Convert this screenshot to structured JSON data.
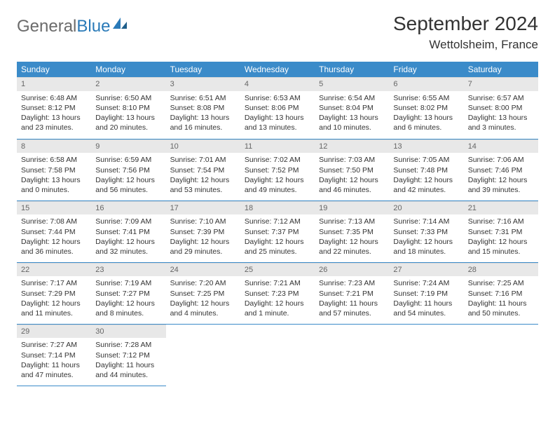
{
  "logo": {
    "text1": "General",
    "text2": "Blue"
  },
  "title": "September 2024",
  "location": "Wettolsheim, France",
  "colors": {
    "header_bg": "#3b8bc9",
    "daynum_bg": "#e8e8e8",
    "rule": "#3b8bc9",
    "logo_gray": "#6b6b6b",
    "logo_blue": "#2a7ab8"
  },
  "dow": [
    "Sunday",
    "Monday",
    "Tuesday",
    "Wednesday",
    "Thursday",
    "Friday",
    "Saturday"
  ],
  "weeks": [
    [
      {
        "n": "1",
        "sr": "Sunrise: 6:48 AM",
        "ss": "Sunset: 8:12 PM",
        "d1": "Daylight: 13 hours",
        "d2": "and 23 minutes."
      },
      {
        "n": "2",
        "sr": "Sunrise: 6:50 AM",
        "ss": "Sunset: 8:10 PM",
        "d1": "Daylight: 13 hours",
        "d2": "and 20 minutes."
      },
      {
        "n": "3",
        "sr": "Sunrise: 6:51 AM",
        "ss": "Sunset: 8:08 PM",
        "d1": "Daylight: 13 hours",
        "d2": "and 16 minutes."
      },
      {
        "n": "4",
        "sr": "Sunrise: 6:53 AM",
        "ss": "Sunset: 8:06 PM",
        "d1": "Daylight: 13 hours",
        "d2": "and 13 minutes."
      },
      {
        "n": "5",
        "sr": "Sunrise: 6:54 AM",
        "ss": "Sunset: 8:04 PM",
        "d1": "Daylight: 13 hours",
        "d2": "and 10 minutes."
      },
      {
        "n": "6",
        "sr": "Sunrise: 6:55 AM",
        "ss": "Sunset: 8:02 PM",
        "d1": "Daylight: 13 hours",
        "d2": "and 6 minutes."
      },
      {
        "n": "7",
        "sr": "Sunrise: 6:57 AM",
        "ss": "Sunset: 8:00 PM",
        "d1": "Daylight: 13 hours",
        "d2": "and 3 minutes."
      }
    ],
    [
      {
        "n": "8",
        "sr": "Sunrise: 6:58 AM",
        "ss": "Sunset: 7:58 PM",
        "d1": "Daylight: 13 hours",
        "d2": "and 0 minutes."
      },
      {
        "n": "9",
        "sr": "Sunrise: 6:59 AM",
        "ss": "Sunset: 7:56 PM",
        "d1": "Daylight: 12 hours",
        "d2": "and 56 minutes."
      },
      {
        "n": "10",
        "sr": "Sunrise: 7:01 AM",
        "ss": "Sunset: 7:54 PM",
        "d1": "Daylight: 12 hours",
        "d2": "and 53 minutes."
      },
      {
        "n": "11",
        "sr": "Sunrise: 7:02 AM",
        "ss": "Sunset: 7:52 PM",
        "d1": "Daylight: 12 hours",
        "d2": "and 49 minutes."
      },
      {
        "n": "12",
        "sr": "Sunrise: 7:03 AM",
        "ss": "Sunset: 7:50 PM",
        "d1": "Daylight: 12 hours",
        "d2": "and 46 minutes."
      },
      {
        "n": "13",
        "sr": "Sunrise: 7:05 AM",
        "ss": "Sunset: 7:48 PM",
        "d1": "Daylight: 12 hours",
        "d2": "and 42 minutes."
      },
      {
        "n": "14",
        "sr": "Sunrise: 7:06 AM",
        "ss": "Sunset: 7:46 PM",
        "d1": "Daylight: 12 hours",
        "d2": "and 39 minutes."
      }
    ],
    [
      {
        "n": "15",
        "sr": "Sunrise: 7:08 AM",
        "ss": "Sunset: 7:44 PM",
        "d1": "Daylight: 12 hours",
        "d2": "and 36 minutes."
      },
      {
        "n": "16",
        "sr": "Sunrise: 7:09 AM",
        "ss": "Sunset: 7:41 PM",
        "d1": "Daylight: 12 hours",
        "d2": "and 32 minutes."
      },
      {
        "n": "17",
        "sr": "Sunrise: 7:10 AM",
        "ss": "Sunset: 7:39 PM",
        "d1": "Daylight: 12 hours",
        "d2": "and 29 minutes."
      },
      {
        "n": "18",
        "sr": "Sunrise: 7:12 AM",
        "ss": "Sunset: 7:37 PM",
        "d1": "Daylight: 12 hours",
        "d2": "and 25 minutes."
      },
      {
        "n": "19",
        "sr": "Sunrise: 7:13 AM",
        "ss": "Sunset: 7:35 PM",
        "d1": "Daylight: 12 hours",
        "d2": "and 22 minutes."
      },
      {
        "n": "20",
        "sr": "Sunrise: 7:14 AM",
        "ss": "Sunset: 7:33 PM",
        "d1": "Daylight: 12 hours",
        "d2": "and 18 minutes."
      },
      {
        "n": "21",
        "sr": "Sunrise: 7:16 AM",
        "ss": "Sunset: 7:31 PM",
        "d1": "Daylight: 12 hours",
        "d2": "and 15 minutes."
      }
    ],
    [
      {
        "n": "22",
        "sr": "Sunrise: 7:17 AM",
        "ss": "Sunset: 7:29 PM",
        "d1": "Daylight: 12 hours",
        "d2": "and 11 minutes."
      },
      {
        "n": "23",
        "sr": "Sunrise: 7:19 AM",
        "ss": "Sunset: 7:27 PM",
        "d1": "Daylight: 12 hours",
        "d2": "and 8 minutes."
      },
      {
        "n": "24",
        "sr": "Sunrise: 7:20 AM",
        "ss": "Sunset: 7:25 PM",
        "d1": "Daylight: 12 hours",
        "d2": "and 4 minutes."
      },
      {
        "n": "25",
        "sr": "Sunrise: 7:21 AM",
        "ss": "Sunset: 7:23 PM",
        "d1": "Daylight: 12 hours",
        "d2": "and 1 minute."
      },
      {
        "n": "26",
        "sr": "Sunrise: 7:23 AM",
        "ss": "Sunset: 7:21 PM",
        "d1": "Daylight: 11 hours",
        "d2": "and 57 minutes."
      },
      {
        "n": "27",
        "sr": "Sunrise: 7:24 AM",
        "ss": "Sunset: 7:19 PM",
        "d1": "Daylight: 11 hours",
        "d2": "and 54 minutes."
      },
      {
        "n": "28",
        "sr": "Sunrise: 7:25 AM",
        "ss": "Sunset: 7:16 PM",
        "d1": "Daylight: 11 hours",
        "d2": "and 50 minutes."
      }
    ],
    [
      {
        "n": "29",
        "sr": "Sunrise: 7:27 AM",
        "ss": "Sunset: 7:14 PM",
        "d1": "Daylight: 11 hours",
        "d2": "and 47 minutes."
      },
      {
        "n": "30",
        "sr": "Sunrise: 7:28 AM",
        "ss": "Sunset: 7:12 PM",
        "d1": "Daylight: 11 hours",
        "d2": "and 44 minutes."
      },
      null,
      null,
      null,
      null,
      null
    ]
  ]
}
